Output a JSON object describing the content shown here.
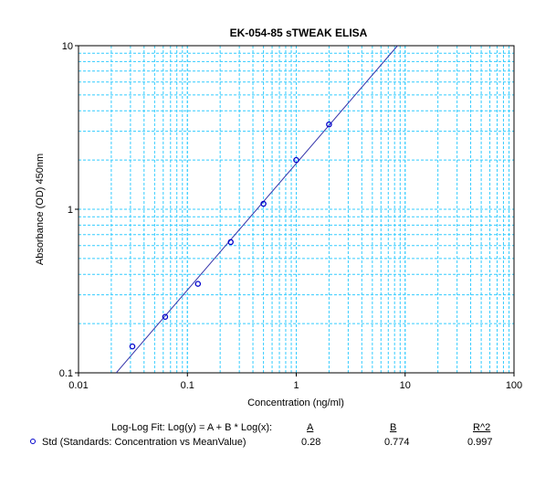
{
  "chart_data": {
    "type": "scatter",
    "title": "EK-054-85  sTWEAK ELISA",
    "xlabel": "Concentration (ng/ml)",
    "ylabel": "Absorbance (OD) 450nm",
    "xscale": "log",
    "yscale": "log",
    "xlim": [
      0.01,
      100
    ],
    "ylim": [
      0.1,
      10
    ],
    "x_tick_labels": [
      "0.01",
      "0.1",
      "1",
      "10",
      "100"
    ],
    "y_tick_labels": [
      "0.1",
      "1",
      "10"
    ],
    "grid": true,
    "grid_color": "#33ccff",
    "series": [
      {
        "name": "Std (Standards: Concentration vs MeanValue)",
        "marker": "circle",
        "color": "#0000cc",
        "points": [
          {
            "x": 0.03125,
            "y": 0.145
          },
          {
            "x": 0.0625,
            "y": 0.22
          },
          {
            "x": 0.125,
            "y": 0.35
          },
          {
            "x": 0.25,
            "y": 0.63
          },
          {
            "x": 0.5,
            "y": 1.08
          },
          {
            "x": 1,
            "y": 2.0
          },
          {
            "x": 2,
            "y": 3.3
          }
        ]
      }
    ],
    "fit": {
      "label": "Log-Log Fit: Log(y) = A + B * Log(x):",
      "A": "0.28",
      "B": "0.774",
      "R2": "0.997",
      "color": "#3333aa",
      "headers": {
        "A": "A",
        "B": "B",
        "R2": "R^2"
      }
    }
  }
}
